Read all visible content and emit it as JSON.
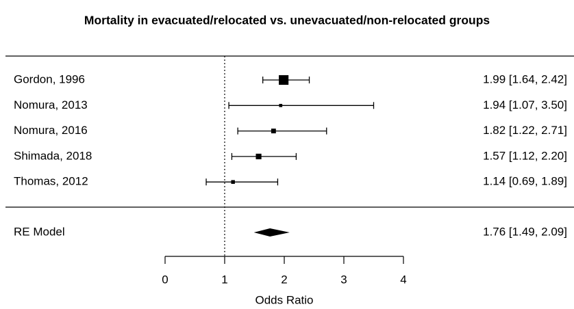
{
  "chart_data": {
    "type": "forest",
    "title": "Mortality in evacuated/relocated vs. unevacuated/non-relocated groups",
    "x_label": "Odds Ratio",
    "categories": [
      "Gordon, 1996",
      "Nomura, 2013",
      "Nomura, 2016",
      "Shimada, 2018",
      "Thomas, 2012"
    ],
    "values": [
      1.99,
      1.94,
      1.82,
      1.57,
      1.14
    ],
    "lower": [
      1.64,
      1.07,
      1.22,
      1.12,
      0.69
    ],
    "upper": [
      2.42,
      3.5,
      2.71,
      2.2,
      1.89
    ],
    "value_labels": [
      "1.99 [1.64, 2.42]",
      "1.94 [1.07, 3.50]",
      "1.82 [1.22, 2.71]",
      "1.57 [1.12, 2.20]",
      "1.14 [0.69, 1.89]"
    ],
    "summary": {
      "name": "RE Model",
      "value": 1.76,
      "lower": 1.49,
      "upper": 2.09,
      "value_label": "1.76 [1.49, 2.09]"
    },
    "reference_line": 1,
    "xlim": [
      0,
      4
    ],
    "xticks": [
      0,
      1,
      2,
      3,
      4
    ],
    "color": "#000000"
  }
}
